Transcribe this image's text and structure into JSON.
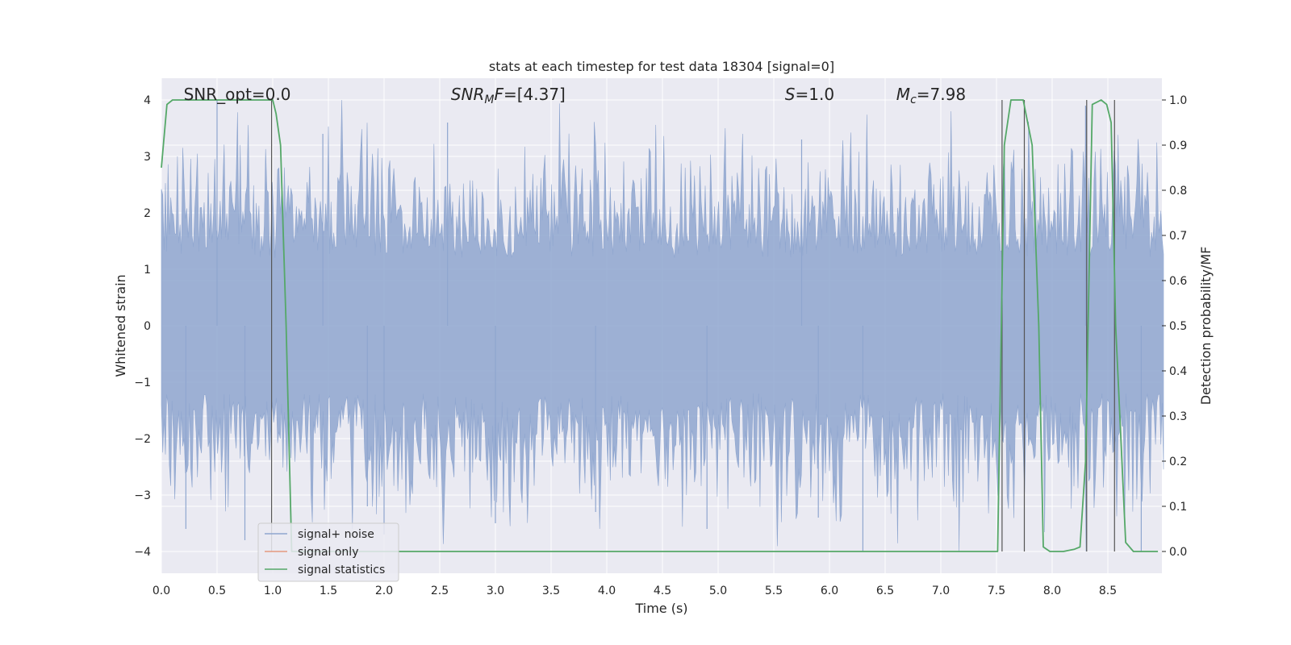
{
  "chart_data": {
    "type": "line",
    "title": "stats at each timestep for test data 18304 [signal=0]",
    "xlabel": "Time (s)",
    "ylabel_left": "Whitened strain",
    "ylabel_right": "Detection probability/MF",
    "xlim": [
      0.0,
      9.0
    ],
    "ylim_left": [
      -4.4,
      4.4
    ],
    "ylim_right": [
      -0.05,
      1.05
    ],
    "xticks": [
      "0.0",
      "0.5",
      "1.0",
      "1.5",
      "2.0",
      "2.5",
      "3.0",
      "3.5",
      "4.0",
      "4.5",
      "5.0",
      "5.5",
      "6.0",
      "6.5",
      "7.0",
      "7.5",
      "8.0",
      "8.5"
    ],
    "yticks_left": [
      "−4",
      "−3",
      "−2",
      "−1",
      "0",
      "1",
      "2",
      "3",
      "4"
    ],
    "yticks_right": [
      "0.0",
      "0.1",
      "0.2",
      "0.3",
      "0.4",
      "0.5",
      "0.6",
      "0.7",
      "0.8",
      "0.9",
      "1.0"
    ],
    "annotations": [
      {
        "text": "SNR_opt=0.0",
        "x": 0.2,
        "y": 4.1
      },
      {
        "text": "SNR_MF=[4.37]",
        "x": 2.6,
        "y": 4.1
      },
      {
        "text": "S=1.0",
        "x": 5.6,
        "y": 4.1
      },
      {
        "text": "M_c=7.98",
        "x": 6.6,
        "y": 4.1
      }
    ],
    "grid": true,
    "legend_position": "lower left",
    "series": [
      {
        "name": "signal+ noise",
        "color": "#8fa6cf",
        "kind": "whitened strain noise, amplitude mostly within ±2.5 with spikes to ±4",
        "envelope": {
          "typical_amplitude": 1.6,
          "max_amplitude": 4.0
        }
      },
      {
        "name": "signal only",
        "color": "#e59a7f",
        "values": []
      },
      {
        "name": "signal statistics",
        "color": "#55a868",
        "x": [
          0.0,
          0.05,
          0.1,
          0.5,
          1.0,
          1.03,
          1.07,
          1.12,
          1.17,
          1.5,
          7.45,
          7.51,
          7.57,
          7.63,
          7.74,
          7.82,
          7.88,
          7.92,
          7.98,
          8.1,
          8.2,
          8.25,
          8.3,
          8.36,
          8.44,
          8.49,
          8.53,
          8.57,
          8.66,
          8.73,
          8.8,
          8.95
        ],
        "y": [
          0.85,
          0.99,
          1.0,
          1.0,
          1.0,
          0.97,
          0.9,
          0.5,
          0.0,
          0.0,
          0.0,
          0.0,
          0.9,
          1.0,
          1.0,
          0.9,
          0.5,
          0.01,
          0.0,
          0.0,
          0.005,
          0.01,
          0.2,
          0.99,
          1.0,
          0.99,
          0.95,
          0.5,
          0.02,
          0.0,
          0.0,
          0.0
        ]
      }
    ],
    "vertical_lines": {
      "color": "#555555",
      "x": [
        0.99,
        7.55,
        7.75,
        8.31,
        8.56
      ]
    }
  },
  "legend": {
    "items": [
      {
        "label": "signal+ noise",
        "color": "#8fa6cf"
      },
      {
        "label": "signal only",
        "color": "#e59a7f"
      },
      {
        "label": "signal statistics",
        "color": "#55a868"
      }
    ]
  },
  "colors": {
    "plot_background": "#eaeaf2",
    "grid": "#ffffff",
    "text": "#262626"
  }
}
